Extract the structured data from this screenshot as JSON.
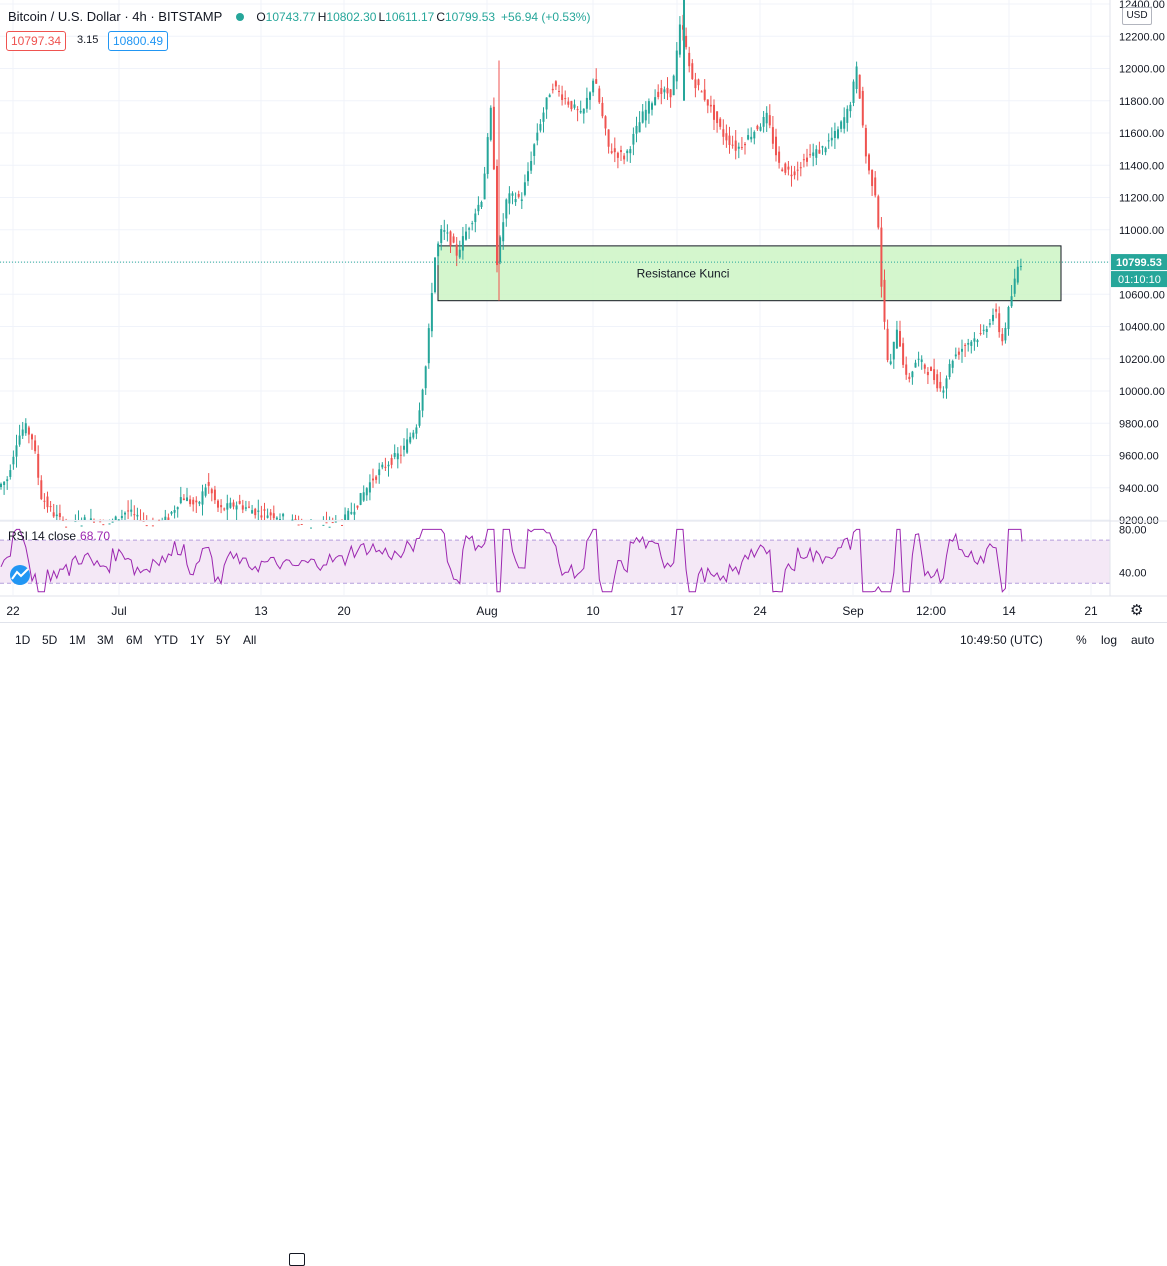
{
  "header": {
    "symbol": "Bitcoin / U.S. Dollar · 4h · BITSTAMP",
    "open_label": "O",
    "open": "10743.77",
    "high_label": "H",
    "high": "10802.30",
    "low_label": "L",
    "low": "10611.17",
    "close_label": "C",
    "close": "10799.53",
    "change": "+56.94 (+0.53%)"
  },
  "trade": {
    "sell": "10797.34",
    "spread": "3.15",
    "buy": "10800.49"
  },
  "currency_button": "USD",
  "last_price": "10799.53",
  "countdown": "01:10:10",
  "rsi": {
    "label": "RSI 14 close",
    "value": "68.70"
  },
  "toolbar": {
    "ranges": [
      "1D",
      "5D",
      "1M",
      "3M",
      "6M",
      "YTD",
      "1Y",
      "5Y",
      "All"
    ],
    "time": "10:49:50 (UTC)",
    "percent": "%",
    "log": "log",
    "auto": "auto"
  },
  "colors": {
    "up": "#26a69a",
    "down": "#ef5350",
    "rsi": "#9c27b0",
    "zone": "#ccf5c4"
  },
  "chart_data": [
    {
      "type": "candlestick",
      "x_tick_labels": [
        "22",
        "Jul",
        "13",
        "20",
        "Aug",
        "10",
        "17",
        "24",
        "Sep",
        "12:00",
        "14",
        "21"
      ],
      "y_tick_labels": [
        "9200.00",
        "9400.00",
        "9600.00",
        "9800.00",
        "10000.00",
        "10200.00",
        "10400.00",
        "10600.00",
        "10800.00",
        "11000.00",
        "11200.00",
        "11400.00",
        "11600.00",
        "11800.00",
        "12000.00",
        "12200.00",
        "12400.00"
      ],
      "ylim": [
        9200,
        12400
      ],
      "annotations": [
        {
          "type": "rectangle",
          "text": "Resistance Kunci",
          "y_range": [
            10560,
            10900
          ]
        }
      ],
      "series_approx": [
        [
          0,
          9400
        ],
        [
          10,
          9450
        ],
        [
          20,
          9700
        ],
        [
          28,
          9780
        ],
        [
          36,
          9700
        ],
        [
          44,
          9350
        ],
        [
          55,
          9250
        ],
        [
          70,
          9150
        ],
        [
          90,
          9200
        ],
        [
          110,
          9150
        ],
        [
          130,
          9260
        ],
        [
          150,
          9150
        ],
        [
          170,
          9200
        ],
        [
          185,
          9350
        ],
        [
          200,
          9280
        ],
        [
          210,
          9430
        ],
        [
          222,
          9260
        ],
        [
          240,
          9300
        ],
        [
          260,
          9250
        ],
        [
          280,
          9230
        ],
        [
          300,
          9170
        ],
        [
          320,
          9150
        ],
        [
          345,
          9180
        ],
        [
          360,
          9300
        ],
        [
          375,
          9450
        ],
        [
          390,
          9550
        ],
        [
          405,
          9620
        ],
        [
          420,
          9800
        ],
        [
          430,
          10200
        ],
        [
          437,
          10800
        ],
        [
          445,
          11000
        ],
        [
          452,
          10950
        ],
        [
          460,
          10850
        ],
        [
          470,
          11000
        ],
        [
          485,
          11200
        ],
        [
          495,
          11800
        ],
        [
          500,
          10800
        ],
        [
          510,
          11200
        ],
        [
          525,
          11200
        ],
        [
          540,
          11600
        ],
        [
          555,
          11900
        ],
        [
          570,
          11800
        ],
        [
          585,
          11700
        ],
        [
          597,
          11950
        ],
        [
          612,
          11500
        ],
        [
          628,
          11450
        ],
        [
          645,
          11700
        ],
        [
          660,
          11850
        ],
        [
          675,
          11850
        ],
        [
          684,
          12300
        ],
        [
          694,
          11950
        ],
        [
          710,
          11800
        ],
        [
          725,
          11600
        ],
        [
          740,
          11500
        ],
        [
          755,
          11600
        ],
        [
          770,
          11700
        ],
        [
          782,
          11400
        ],
        [
          795,
          11350
        ],
        [
          810,
          11450
        ],
        [
          825,
          11500
        ],
        [
          840,
          11600
        ],
        [
          852,
          11750
        ],
        [
          860,
          12000
        ],
        [
          870,
          11400
        ],
        [
          880,
          11200
        ],
        [
          885,
          10600
        ],
        [
          892,
          10100
        ],
        [
          900,
          10400
        ],
        [
          910,
          10050
        ],
        [
          920,
          10200
        ],
        [
          935,
          10100
        ],
        [
          945,
          10000
        ],
        [
          955,
          10200
        ],
        [
          970,
          10300
        ],
        [
          985,
          10350
        ],
        [
          998,
          10500
        ],
        [
          1005,
          10300
        ],
        [
          1015,
          10600
        ],
        [
          1022,
          10800
        ]
      ]
    },
    {
      "type": "line",
      "title": "RSI 14 close",
      "ylim": [
        20,
        85
      ],
      "y_tick_labels": [
        "80.00",
        "40.00"
      ],
      "band": [
        30,
        70
      ]
    }
  ]
}
